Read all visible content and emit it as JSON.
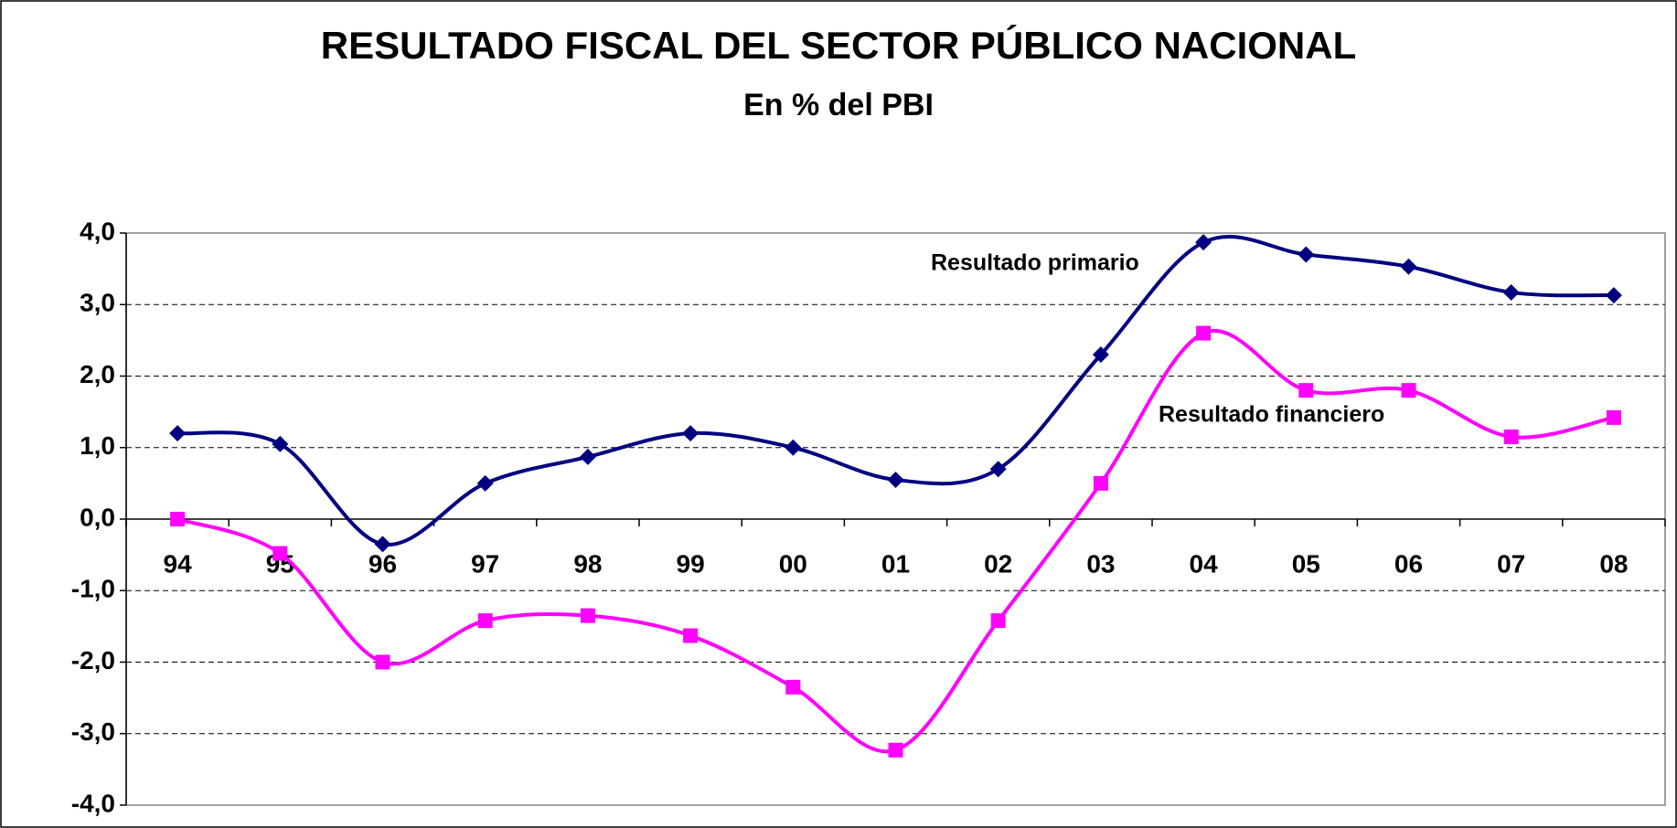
{
  "chart_data": {
    "type": "line",
    "title": "RESULTADO FISCAL DEL SECTOR PÚBLICO NACIONAL",
    "subtitle": "En % del PBI",
    "categories": [
      "94",
      "95",
      "96",
      "97",
      "98",
      "99",
      "00",
      "01",
      "02",
      "03",
      "04",
      "05",
      "06",
      "07",
      "08"
    ],
    "series": [
      {
        "name": "Resultado primario",
        "color": "#000080",
        "marker": "diamond",
        "values": [
          1.2,
          1.05,
          -0.35,
          0.5,
          0.87,
          1.2,
          1.0,
          0.55,
          0.7,
          2.3,
          3.87,
          3.7,
          3.53,
          3.17,
          3.13
        ]
      },
      {
        "name": "Resultado financiero",
        "color": "#ff00ff",
        "marker": "square",
        "values": [
          0.0,
          -0.48,
          -2.0,
          -1.42,
          -1.35,
          -1.63,
          -2.35,
          -3.23,
          -1.42,
          0.5,
          2.6,
          1.8,
          1.8,
          1.15,
          1.42
        ]
      }
    ],
    "ylim": [
      -4,
      4
    ],
    "yticks": [
      {
        "value": -4,
        "label": "-4,0"
      },
      {
        "value": -3,
        "label": "-3,0"
      },
      {
        "value": -2,
        "label": "-2,0"
      },
      {
        "value": -1,
        "label": "-1,0"
      },
      {
        "value": 0,
        "label": "0,0"
      },
      {
        "value": 1,
        "label": "1,0"
      },
      {
        "value": 2,
        "label": "2,0"
      },
      {
        "value": 3,
        "label": "3,0"
      },
      {
        "value": 4,
        "label": "4,0"
      }
    ],
    "grid": true,
    "smooth": true
  }
}
